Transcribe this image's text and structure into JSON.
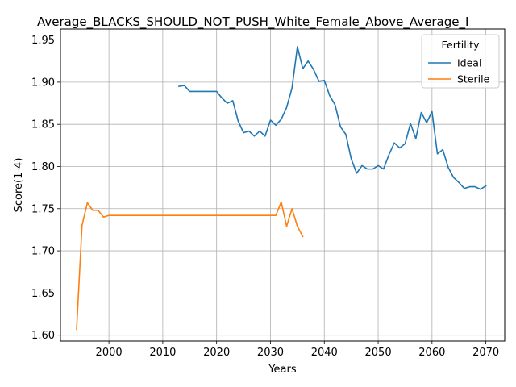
{
  "chart_data": {
    "type": "line",
    "title": "Average_BLACKS_SHOULD_NOT_PUSH_White_Female_Above_Average_I",
    "xlabel": "Years",
    "ylabel": "Score(1-4)",
    "xlim": [
      1991,
      2073.5
    ],
    "ylim": [
      1.593,
      1.963
    ],
    "xticks": [
      2000,
      2010,
      2020,
      2030,
      2040,
      2050,
      2060,
      2070
    ],
    "yticks": [
      1.6,
      1.65,
      1.7,
      1.75,
      1.8,
      1.85,
      1.9,
      1.95
    ],
    "grid": true,
    "legend": {
      "title": "Fertility",
      "placement": "top-right"
    },
    "series": [
      {
        "name": "Ideal",
        "color": "#1f77b4",
        "x": [
          2013,
          2014,
          2015,
          2016,
          2017,
          2018,
          2019,
          2020,
          2021,
          2022,
          2023,
          2024,
          2025,
          2026,
          2027,
          2028,
          2029,
          2030,
          2031,
          2032,
          2033,
          2034,
          2035,
          2036,
          2037,
          2038,
          2039,
          2040,
          2041,
          2042,
          2043,
          2044,
          2045,
          2046,
          2047,
          2048,
          2049,
          2050,
          2051,
          2052,
          2053,
          2054,
          2055,
          2056,
          2057,
          2058,
          2059,
          2060,
          2061,
          2062,
          2063,
          2064,
          2065,
          2066,
          2067,
          2068,
          2069,
          2070
        ],
        "values": [
          1.895,
          1.896,
          1.889,
          1.889,
          1.889,
          1.889,
          1.889,
          1.889,
          1.881,
          1.875,
          1.878,
          1.854,
          1.84,
          1.842,
          1.836,
          1.842,
          1.836,
          1.855,
          1.849,
          1.856,
          1.87,
          1.893,
          1.942,
          1.916,
          1.925,
          1.915,
          1.901,
          1.902,
          1.884,
          1.873,
          1.847,
          1.838,
          1.809,
          1.792,
          1.801,
          1.797,
          1.797,
          1.801,
          1.797,
          1.814,
          1.828,
          1.822,
          1.827,
          1.851,
          1.833,
          1.864,
          1.852,
          1.865,
          1.815,
          1.82,
          1.799,
          1.787,
          1.781,
          1.774,
          1.776,
          1.776,
          1.773,
          1.777
        ]
      },
      {
        "name": "Sterile",
        "color": "#ff7f0e",
        "x": [
          1994,
          1995,
          1996,
          1997,
          1998,
          1999,
          2000,
          2001,
          2002,
          2003,
          2004,
          2005,
          2006,
          2007,
          2008,
          2009,
          2010,
          2011,
          2012,
          2013,
          2014,
          2015,
          2016,
          2017,
          2018,
          2019,
          2020,
          2021,
          2022,
          2023,
          2024,
          2025,
          2026,
          2027,
          2028,
          2029,
          2030,
          2031,
          2032,
          2033,
          2034,
          2035,
          2036
        ],
        "values": [
          1.607,
          1.73,
          1.757,
          1.748,
          1.748,
          1.74,
          1.742,
          1.742,
          1.742,
          1.742,
          1.742,
          1.742,
          1.742,
          1.742,
          1.742,
          1.742,
          1.742,
          1.742,
          1.742,
          1.742,
          1.742,
          1.742,
          1.742,
          1.742,
          1.742,
          1.742,
          1.742,
          1.742,
          1.742,
          1.742,
          1.742,
          1.742,
          1.742,
          1.742,
          1.742,
          1.742,
          1.742,
          1.742,
          1.758,
          1.729,
          1.75,
          1.729,
          1.717
        ]
      }
    ]
  }
}
